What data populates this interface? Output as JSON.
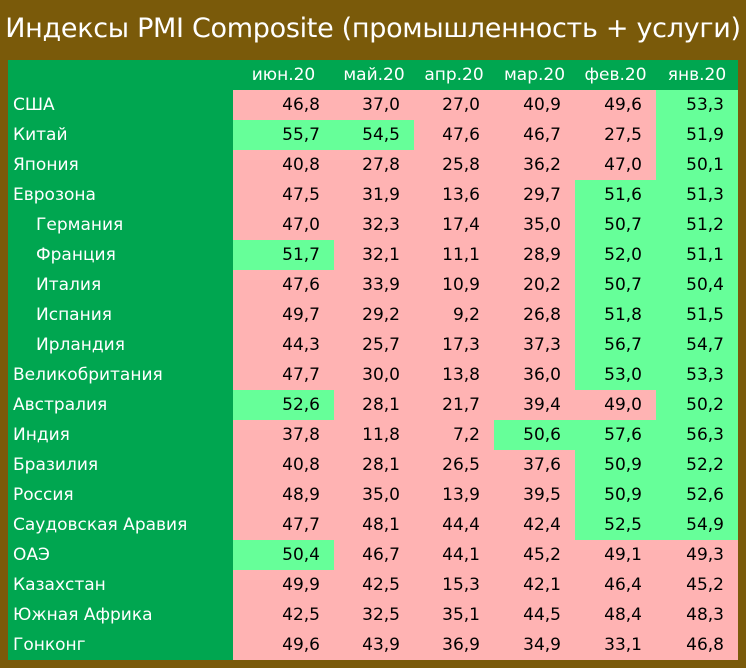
{
  "title": "Индексы PMI Composite (промышленность + услуги)",
  "columns": [
    "июн.20",
    "май.20",
    "апр.20",
    "мар.20",
    "фев.20",
    "янв.20"
  ],
  "colors": {
    "frame": "#7a5a0a",
    "label_bg": "#00a650",
    "above_50": "#66ff99",
    "below_50": "#ffb3b3"
  },
  "rows": [
    {
      "country": "США",
      "indent": false,
      "values": [
        "46,8",
        "37,0",
        "27,0",
        "40,9",
        "49,6",
        "53,3"
      ],
      "hl": [
        "p",
        "p",
        "p",
        "p",
        "p",
        "g"
      ]
    },
    {
      "country": "Китай",
      "indent": false,
      "values": [
        "55,7",
        "54,5",
        "47,6",
        "46,7",
        "27,5",
        "51,9"
      ],
      "hl": [
        "g",
        "g",
        "p",
        "p",
        "p",
        "g"
      ]
    },
    {
      "country": "Япония",
      "indent": false,
      "values": [
        "40,8",
        "27,8",
        "25,8",
        "36,2",
        "47,0",
        "50,1"
      ],
      "hl": [
        "p",
        "p",
        "p",
        "p",
        "p",
        "g"
      ]
    },
    {
      "country": "Еврозона",
      "indent": false,
      "values": [
        "47,5",
        "31,9",
        "13,6",
        "29,7",
        "51,6",
        "51,3"
      ],
      "hl": [
        "p",
        "p",
        "p",
        "p",
        "g",
        "g"
      ]
    },
    {
      "country": "Германия",
      "indent": true,
      "values": [
        "47,0",
        "32,3",
        "17,4",
        "35,0",
        "50,7",
        "51,2"
      ],
      "hl": [
        "p",
        "p",
        "p",
        "p",
        "g",
        "g"
      ]
    },
    {
      "country": "Франция",
      "indent": true,
      "values": [
        "51,7",
        "32,1",
        "11,1",
        "28,9",
        "52,0",
        "51,1"
      ],
      "hl": [
        "g",
        "p",
        "p",
        "p",
        "g",
        "g"
      ]
    },
    {
      "country": "Италия",
      "indent": true,
      "values": [
        "47,6",
        "33,9",
        "10,9",
        "20,2",
        "50,7",
        "50,4"
      ],
      "hl": [
        "p",
        "p",
        "p",
        "p",
        "g",
        "g"
      ]
    },
    {
      "country": "Испания",
      "indent": true,
      "values": [
        "49,7",
        "29,2",
        "9,2",
        "26,8",
        "51,8",
        "51,5"
      ],
      "hl": [
        "p",
        "p",
        "p",
        "p",
        "g",
        "g"
      ]
    },
    {
      "country": "Ирландия",
      "indent": true,
      "values": [
        "44,3",
        "25,7",
        "17,3",
        "37,3",
        "56,7",
        "54,7"
      ],
      "hl": [
        "p",
        "p",
        "p",
        "p",
        "g",
        "g"
      ]
    },
    {
      "country": "Великобритания",
      "indent": false,
      "values": [
        "47,7",
        "30,0",
        "13,8",
        "36,0",
        "53,0",
        "53,3"
      ],
      "hl": [
        "p",
        "p",
        "p",
        "p",
        "g",
        "g"
      ]
    },
    {
      "country": "Австралия",
      "indent": false,
      "values": [
        "52,6",
        "28,1",
        "21,7",
        "39,4",
        "49,0",
        "50,2"
      ],
      "hl": [
        "g",
        "p",
        "p",
        "p",
        "p",
        "g"
      ]
    },
    {
      "country": "Индия",
      "indent": false,
      "values": [
        "37,8",
        "11,8",
        "7,2",
        "50,6",
        "57,6",
        "56,3"
      ],
      "hl": [
        "p",
        "p",
        "p",
        "g",
        "g",
        "g"
      ]
    },
    {
      "country": "Бразилия",
      "indent": false,
      "values": [
        "40,8",
        "28,1",
        "26,5",
        "37,6",
        "50,9",
        "52,2"
      ],
      "hl": [
        "p",
        "p",
        "p",
        "p",
        "g",
        "g"
      ]
    },
    {
      "country": "Россия",
      "indent": false,
      "values": [
        "48,9",
        "35,0",
        "13,9",
        "39,5",
        "50,9",
        "52,6"
      ],
      "hl": [
        "p",
        "p",
        "p",
        "p",
        "g",
        "g"
      ]
    },
    {
      "country": "Саудовская Аравия",
      "indent": false,
      "values": [
        "47,7",
        "48,1",
        "44,4",
        "42,4",
        "52,5",
        "54,9"
      ],
      "hl": [
        "p",
        "p",
        "p",
        "p",
        "g",
        "g"
      ]
    },
    {
      "country": "ОАЭ",
      "indent": false,
      "values": [
        "50,4",
        "46,7",
        "44,1",
        "45,2",
        "49,1",
        "49,3"
      ],
      "hl": [
        "g",
        "p",
        "p",
        "p",
        "p",
        "p"
      ]
    },
    {
      "country": "Казахстан",
      "indent": false,
      "values": [
        "49,9",
        "42,5",
        "15,3",
        "42,1",
        "46,4",
        "45,2"
      ],
      "hl": [
        "p",
        "p",
        "p",
        "p",
        "p",
        "p"
      ]
    },
    {
      "country": "Южная Африка",
      "indent": false,
      "values": [
        "42,5",
        "32,5",
        "35,1",
        "44,5",
        "48,4",
        "48,3"
      ],
      "hl": [
        "p",
        "p",
        "p",
        "p",
        "p",
        "p"
      ]
    },
    {
      "country": "Гонконг",
      "indent": false,
      "values": [
        "49,6",
        "43,9",
        "36,9",
        "34,9",
        "33,1",
        "46,8"
      ],
      "hl": [
        "p",
        "p",
        "p",
        "p",
        "p",
        "p"
      ]
    }
  ]
}
